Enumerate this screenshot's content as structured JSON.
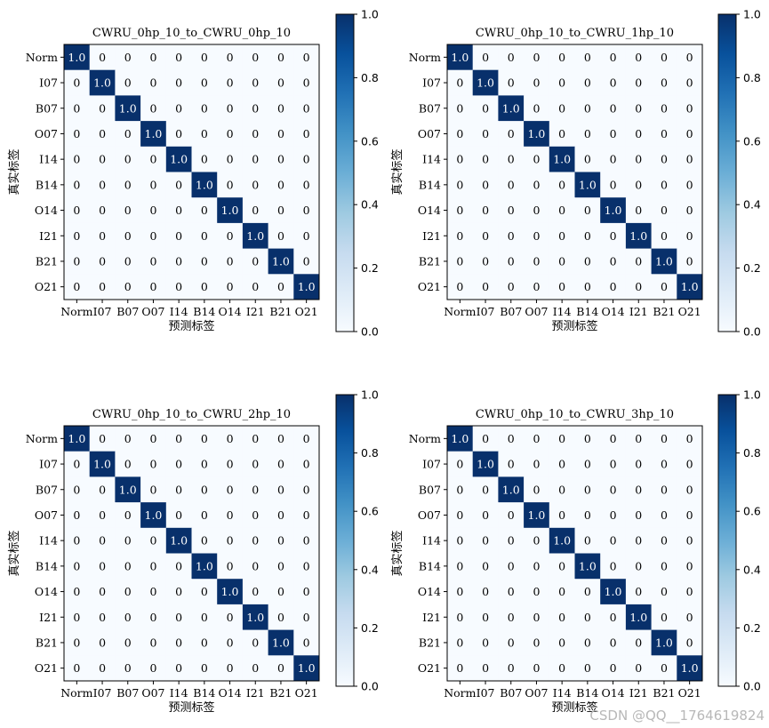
{
  "chart_data": [
    {
      "type": "heatmap",
      "title": "CWRU_0hp_10_to_CWRU_0hp_10",
      "xlabel": "预测标签",
      "ylabel": "真实标签",
      "x_tick_labels": [
        "Norm",
        "I07",
        "B07",
        "O07",
        "I14",
        "B14",
        "O14",
        "I21",
        "B21",
        "O21"
      ],
      "y_tick_labels": [
        "Norm",
        "I07",
        "B07",
        "O07",
        "I14",
        "B14",
        "O14",
        "I21",
        "B21",
        "O21"
      ],
      "matrix": [
        [
          1.0,
          0,
          0,
          0,
          0,
          0,
          0,
          0,
          0,
          0
        ],
        [
          0,
          1.0,
          0,
          0,
          0,
          0,
          0,
          0,
          0,
          0
        ],
        [
          0,
          0,
          1.0,
          0,
          0,
          0,
          0,
          0,
          0,
          0
        ],
        [
          0,
          0,
          0,
          1.0,
          0,
          0,
          0,
          0,
          0,
          0
        ],
        [
          0,
          0,
          0,
          0,
          1.0,
          0,
          0,
          0,
          0,
          0
        ],
        [
          0,
          0,
          0,
          0,
          0,
          1.0,
          0,
          0,
          0,
          0
        ],
        [
          0,
          0,
          0,
          0,
          0,
          0,
          1.0,
          0,
          0,
          0
        ],
        [
          0,
          0,
          0,
          0,
          0,
          0,
          0,
          1.0,
          0,
          0
        ],
        [
          0,
          0,
          0,
          0,
          0,
          0,
          0,
          0,
          1.0,
          0
        ],
        [
          0,
          0,
          0,
          0,
          0,
          0,
          0,
          0,
          0,
          1.0
        ]
      ],
      "colorbar": {
        "range": [
          0.0,
          1.0
        ],
        "ticks": [
          "0.0",
          "0.2",
          "0.4",
          "0.6",
          "0.8",
          "1.0"
        ]
      },
      "colormap": "Blues"
    },
    {
      "type": "heatmap",
      "title": "CWRU_0hp_10_to_CWRU_1hp_10",
      "xlabel": "预测标签",
      "ylabel": "真实标签",
      "x_tick_labels": [
        "Norm",
        "I07",
        "B07",
        "O07",
        "I14",
        "B14",
        "O14",
        "I21",
        "B21",
        "O21"
      ],
      "y_tick_labels": [
        "Norm",
        "I07",
        "B07",
        "O07",
        "I14",
        "B14",
        "O14",
        "I21",
        "B21",
        "O21"
      ],
      "matrix": [
        [
          1.0,
          0,
          0,
          0,
          0,
          0,
          0,
          0,
          0,
          0
        ],
        [
          0,
          1.0,
          0,
          0,
          0,
          0,
          0,
          0,
          0,
          0
        ],
        [
          0,
          0,
          1.0,
          0,
          0,
          0,
          0,
          0,
          0,
          0
        ],
        [
          0,
          0,
          0,
          1.0,
          0,
          0,
          0,
          0,
          0,
          0
        ],
        [
          0,
          0,
          0,
          0,
          1.0,
          0,
          0,
          0,
          0,
          0
        ],
        [
          0,
          0,
          0,
          0,
          0,
          1.0,
          0,
          0,
          0,
          0
        ],
        [
          0,
          0,
          0,
          0,
          0,
          0,
          1.0,
          0,
          0,
          0
        ],
        [
          0,
          0,
          0,
          0,
          0,
          0,
          0,
          1.0,
          0,
          0
        ],
        [
          0,
          0,
          0,
          0,
          0,
          0,
          0,
          0,
          1.0,
          0
        ],
        [
          0,
          0,
          0,
          0,
          0,
          0,
          0,
          0,
          0,
          1.0
        ]
      ],
      "colorbar": {
        "range": [
          0.0,
          1.0
        ],
        "ticks": [
          "0.0",
          "0.2",
          "0.4",
          "0.6",
          "0.8",
          "1.0"
        ]
      },
      "colormap": "Blues"
    },
    {
      "type": "heatmap",
      "title": "CWRU_0hp_10_to_CWRU_2hp_10",
      "xlabel": "预测标签",
      "ylabel": "真实标签",
      "x_tick_labels": [
        "Norm",
        "I07",
        "B07",
        "O07",
        "I14",
        "B14",
        "O14",
        "I21",
        "B21",
        "O21"
      ],
      "y_tick_labels": [
        "Norm",
        "I07",
        "B07",
        "O07",
        "I14",
        "B14",
        "O14",
        "I21",
        "B21",
        "O21"
      ],
      "matrix": [
        [
          1.0,
          0,
          0,
          0,
          0,
          0,
          0,
          0,
          0,
          0
        ],
        [
          0,
          1.0,
          0,
          0,
          0,
          0,
          0,
          0,
          0,
          0
        ],
        [
          0,
          0,
          1.0,
          0,
          0,
          0,
          0,
          0,
          0,
          0
        ],
        [
          0,
          0,
          0,
          1.0,
          0,
          0,
          0,
          0,
          0,
          0
        ],
        [
          0,
          0,
          0,
          0,
          1.0,
          0,
          0,
          0,
          0,
          0
        ],
        [
          0,
          0,
          0,
          0,
          0,
          1.0,
          0,
          0,
          0,
          0
        ],
        [
          0,
          0,
          0,
          0,
          0,
          0,
          1.0,
          0,
          0,
          0
        ],
        [
          0,
          0,
          0,
          0,
          0,
          0,
          0,
          1.0,
          0,
          0
        ],
        [
          0,
          0,
          0,
          0,
          0,
          0,
          0,
          0,
          1.0,
          0
        ],
        [
          0,
          0,
          0,
          0,
          0,
          0,
          0,
          0,
          0,
          1.0
        ]
      ],
      "colorbar": {
        "range": [
          0.0,
          1.0
        ],
        "ticks": [
          "0.0",
          "0.2",
          "0.4",
          "0.6",
          "0.8",
          "1.0"
        ]
      },
      "colormap": "Blues"
    },
    {
      "type": "heatmap",
      "title": "CWRU_0hp_10_to_CWRU_3hp_10",
      "xlabel": "预测标签",
      "ylabel": "真实标签",
      "x_tick_labels": [
        "Norm",
        "I07",
        "B07",
        "O07",
        "I14",
        "B14",
        "O14",
        "I21",
        "B21",
        "O21"
      ],
      "y_tick_labels": [
        "Norm",
        "I07",
        "B07",
        "O07",
        "I14",
        "B14",
        "O14",
        "I21",
        "B21",
        "O21"
      ],
      "matrix": [
        [
          1.0,
          0,
          0,
          0,
          0,
          0,
          0,
          0,
          0,
          0
        ],
        [
          0,
          1.0,
          0,
          0,
          0,
          0,
          0,
          0,
          0,
          0
        ],
        [
          0,
          0,
          1.0,
          0,
          0,
          0,
          0,
          0,
          0,
          0
        ],
        [
          0,
          0,
          0,
          1.0,
          0,
          0,
          0,
          0,
          0,
          0
        ],
        [
          0,
          0,
          0,
          0,
          1.0,
          0,
          0,
          0,
          0,
          0
        ],
        [
          0,
          0,
          0,
          0,
          0,
          1.0,
          0,
          0,
          0,
          0
        ],
        [
          0,
          0,
          0,
          0,
          0,
          0,
          1.0,
          0,
          0,
          0
        ],
        [
          0,
          0,
          0,
          0,
          0,
          0,
          0,
          1.0,
          0,
          0
        ],
        [
          0,
          0,
          0,
          0,
          0,
          0,
          0,
          0,
          1.0,
          0
        ],
        [
          0,
          0,
          0,
          0,
          0,
          0,
          0,
          0,
          0,
          1.0
        ]
      ],
      "colorbar": {
        "range": [
          0.0,
          1.0
        ],
        "ticks": [
          "0.0",
          "0.2",
          "0.4",
          "0.6",
          "0.8",
          "1.0"
        ]
      },
      "colormap": "Blues"
    }
  ],
  "colors": {
    "max": "#08306b",
    "min": "#f7fbff",
    "mid": "#4292c6"
  },
  "watermark": "CSDN @QQ__1764619824"
}
